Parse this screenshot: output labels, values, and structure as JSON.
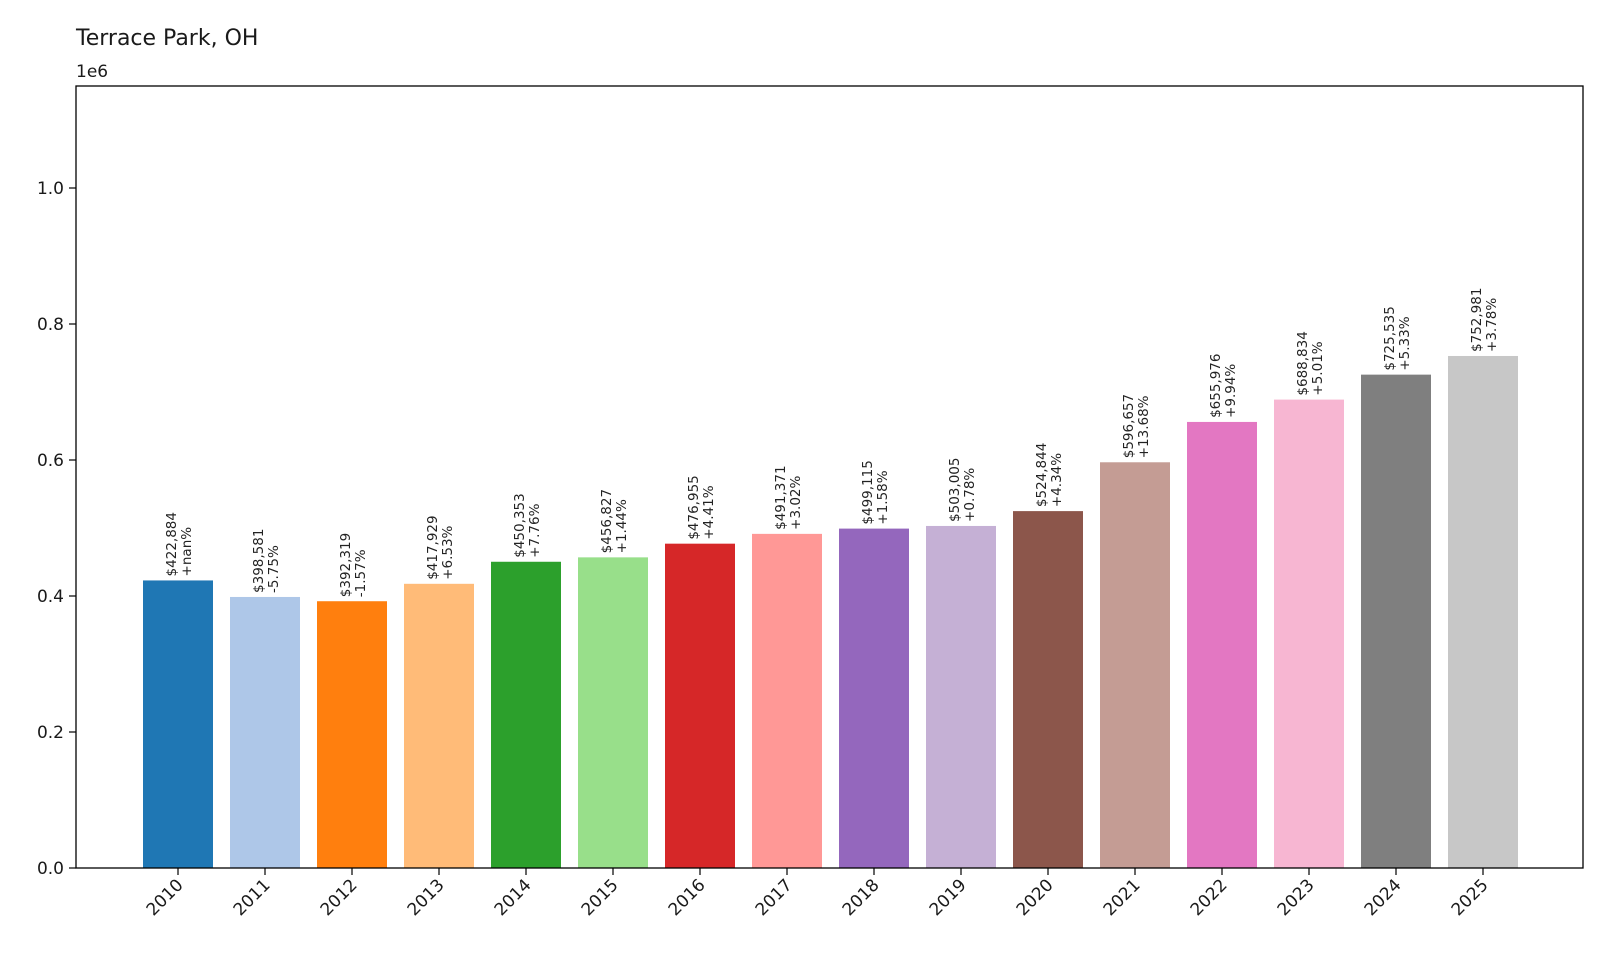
{
  "chart_data": {
    "type": "bar",
    "title": "Terrace Park, OH",
    "y_exponent_label": "1e6",
    "xlabel": "",
    "ylabel": "",
    "ylim": [
      0,
      1150000
    ],
    "y_ticks": [
      0,
      200000,
      400000,
      600000,
      800000,
      1000000
    ],
    "y_tick_labels": [
      "0.0",
      "0.2",
      "0.4",
      "0.6",
      "0.8",
      "1.0"
    ],
    "categories": [
      "2010",
      "2011",
      "2012",
      "2013",
      "2014",
      "2015",
      "2016",
      "2017",
      "2018",
      "2019",
      "2020",
      "2021",
      "2022",
      "2023",
      "2024",
      "2025"
    ],
    "values": [
      422884,
      398581,
      392319,
      417929,
      450353,
      456827,
      476955,
      491371,
      499115,
      503005,
      524844,
      596657,
      655976,
      688834,
      725535,
      752981
    ],
    "value_labels": [
      "$422,884",
      "$398,581",
      "$392,319",
      "$417,929",
      "$450,353",
      "$456,827",
      "$476,955",
      "$491,371",
      "$499,115",
      "$503,005",
      "$524,844",
      "$596,657",
      "$655,976",
      "$688,834",
      "$725,535",
      "$752,981"
    ],
    "change_labels": [
      "+nan%",
      "-5.75%",
      "-1.57%",
      "+6.53%",
      "+7.76%",
      "+1.44%",
      "+4.41%",
      "+3.02%",
      "+1.58%",
      "+0.78%",
      "+4.34%",
      "+13.68%",
      "+9.94%",
      "+5.01%",
      "+5.33%",
      "+3.78%"
    ],
    "colors": [
      "#1f77b4",
      "#aec7e8",
      "#ff7f0e",
      "#ffbb78",
      "#2ca02c",
      "#98df8a",
      "#d62728",
      "#ff9896",
      "#9467bd",
      "#c5b0d5",
      "#8c564b",
      "#c49c94",
      "#e377c2",
      "#f7b6d2",
      "#7f7f7f",
      "#c7c7c7"
    ],
    "grid": false,
    "legend": "none"
  }
}
